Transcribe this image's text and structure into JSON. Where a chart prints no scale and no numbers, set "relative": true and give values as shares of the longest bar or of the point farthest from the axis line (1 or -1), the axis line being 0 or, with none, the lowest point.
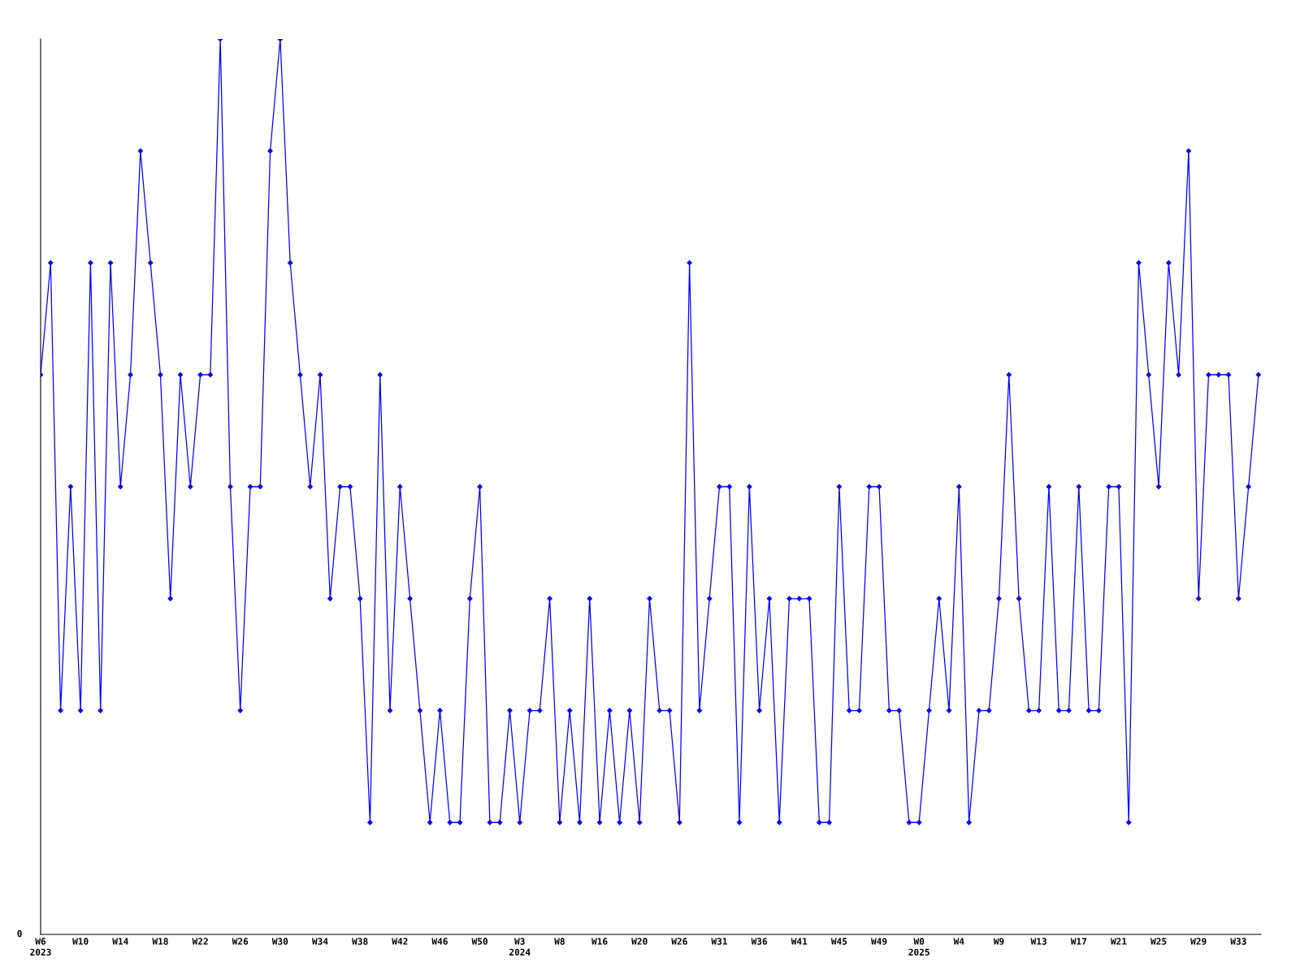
{
  "chart_data": {
    "type": "line",
    "relative": true,
    "marker": "diamond",
    "line_style": "solid",
    "grid": false,
    "legend": false,
    "categories": [
      "W6\n2023",
      null,
      null,
      null,
      "W10",
      null,
      null,
      null,
      "W14",
      null,
      null,
      null,
      "W18",
      null,
      null,
      null,
      "W22",
      null,
      null,
      null,
      "W26",
      null,
      null,
      null,
      "W30",
      null,
      null,
      null,
      "W34",
      null,
      null,
      null,
      "W38",
      null,
      null,
      null,
      "W42",
      null,
      null,
      null,
      "W46",
      null,
      null,
      null,
      "W50",
      null,
      null,
      null,
      "W3\n2024",
      null,
      null,
      null,
      "W8",
      null,
      null,
      null,
      "W16",
      null,
      null,
      null,
      "W20",
      null,
      null,
      null,
      "W26",
      null,
      null,
      null,
      "W31",
      null,
      null,
      null,
      "W36",
      null,
      null,
      null,
      "W41",
      null,
      null,
      null,
      "W45",
      null,
      null,
      null,
      "W49",
      null,
      null,
      null,
      "W0\n2025",
      null,
      null,
      null,
      "W4",
      null,
      null,
      null,
      "W9",
      null,
      null,
      null,
      "W13",
      null,
      null,
      null,
      "W17",
      null,
      null,
      null,
      "W21",
      null,
      null,
      null,
      "W25",
      null,
      null,
      null,
      "W29",
      null,
      null,
      null,
      "W33",
      null,
      null
    ],
    "series": [
      {
        "color": "#0000ff",
        "values": [
          0.625,
          0.75,
          0.25,
          0.5,
          0.25,
          0.75,
          0.25,
          0.75,
          0.5,
          0.625,
          0.875,
          0.75,
          0.625,
          0.375,
          0.625,
          0.5,
          0.625,
          0.625,
          1,
          0.5,
          0.25,
          0.5,
          0.5,
          0.875,
          1,
          0.75,
          0.625,
          0.5,
          0.625,
          0.375,
          0.5,
          0.5,
          0.375,
          0.125,
          0.625,
          0.25,
          0.5,
          0.375,
          0.25,
          0.125,
          0.25,
          0.125,
          0.125,
          0.375,
          0.5,
          0.125,
          0.125,
          0.25,
          0.125,
          0.25,
          0.25,
          0.375,
          0.125,
          0.25,
          0.125,
          0.375,
          0.125,
          0.25,
          0.125,
          0.25,
          0.125,
          0.375,
          0.25,
          0.25,
          0.125,
          0.75,
          0.25,
          0.375,
          0.5,
          0.5,
          0.125,
          0.5,
          0.25,
          0.375,
          0.125,
          0.375,
          0.375,
          0.375,
          0.125,
          0.125,
          0.5,
          0.25,
          0.25,
          0.5,
          0.5,
          0.25,
          0.25,
          0.125,
          0.125,
          0.25,
          0.375,
          0.25,
          0.5,
          0.125,
          0.25,
          0.25,
          0.375,
          0.625,
          0.375,
          0.25,
          0.25,
          0.5,
          0.25,
          0.25,
          0.5,
          0.25,
          0.25,
          0.5,
          0.5,
          0.125,
          0.75,
          0.625,
          0.5,
          0.75,
          0.625,
          0.875,
          0.375,
          0.625,
          0.625,
          0.625,
          0.375,
          0.5,
          0.625
        ]
      }
    ],
    "annotations": [
      "0"
    ]
  }
}
